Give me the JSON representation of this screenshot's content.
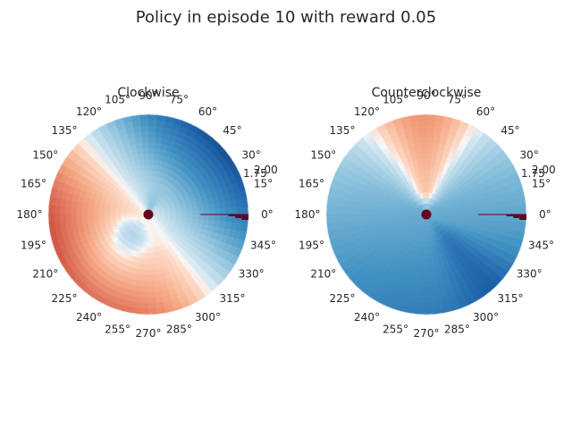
{
  "figure": {
    "title": "Policy in episode 10 with reward 0.05"
  },
  "chart_data": [
    {
      "type": "polar-heatmap",
      "title": "Clockwise",
      "theta_ticks_deg": [
        "0°",
        "15°",
        "30°",
        "45°",
        "60°",
        "75°",
        "90°",
        "105°",
        "120°",
        "135°",
        "150°",
        "165°",
        "180°",
        "195°",
        "210°",
        "225°",
        "240°",
        "255°",
        "270°",
        "285°",
        "300°",
        "315°",
        "330°",
        "345°"
      ],
      "radial_tick_labels": [
        "1.75",
        "2.00"
      ],
      "colormap": "RdBu",
      "colors": {
        "red": "#67001f",
        "blue": "#053061",
        "white": "#f7f7f7"
      }
    },
    {
      "type": "polar-heatmap",
      "title": "Counterclockwise",
      "theta_ticks_deg": [
        "0°",
        "15°",
        "30°",
        "45°",
        "60°",
        "75°",
        "90°",
        "105°",
        "120°",
        "135°",
        "150°",
        "165°",
        "180°",
        "195°",
        "210°",
        "225°",
        "240°",
        "255°",
        "270°",
        "285°",
        "300°",
        "315°",
        "330°",
        "345°"
      ],
      "radial_tick_labels": [
        "1.75",
        "2.00"
      ],
      "colormap": "RdBu",
      "colors": {
        "red": "#67001f",
        "blue": "#053061",
        "white": "#f7f7f7"
      }
    }
  ]
}
